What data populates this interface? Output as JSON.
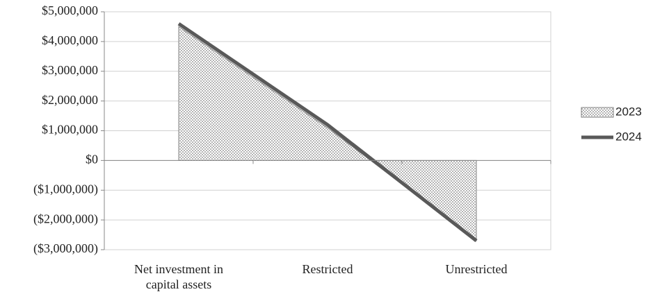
{
  "chart_data": {
    "type": "area",
    "categories": [
      "Net investment in capital assets",
      "Restricted",
      "Unrestricted"
    ],
    "series": [
      {
        "name": "2023",
        "type": "area",
        "color": "#808080",
        "values": [
          4500000,
          1100000,
          -2700000
        ]
      },
      {
        "name": "2024",
        "type": "line",
        "color": "#595959",
        "values": [
          4600000,
          1200000,
          -2700000
        ]
      }
    ],
    "ylim": [
      -3000000,
      5000000
    ],
    "yticks": [
      {
        "value": -3000000,
        "label": "($3,000,000)"
      },
      {
        "value": -2000000,
        "label": "($2,000,000)"
      },
      {
        "value": -1000000,
        "label": "($1,000,000)"
      },
      {
        "value": 0,
        "label": "$0"
      },
      {
        "value": 1000000,
        "label": "$1,000,000"
      },
      {
        "value": 2000000,
        "label": "$2,000,000"
      },
      {
        "value": 3000000,
        "label": "$3,000,000"
      },
      {
        "value": 4000000,
        "label": "$4,000,000"
      },
      {
        "value": 5000000,
        "label": "$5,000,000"
      }
    ],
    "grid": true,
    "legend": "right"
  }
}
